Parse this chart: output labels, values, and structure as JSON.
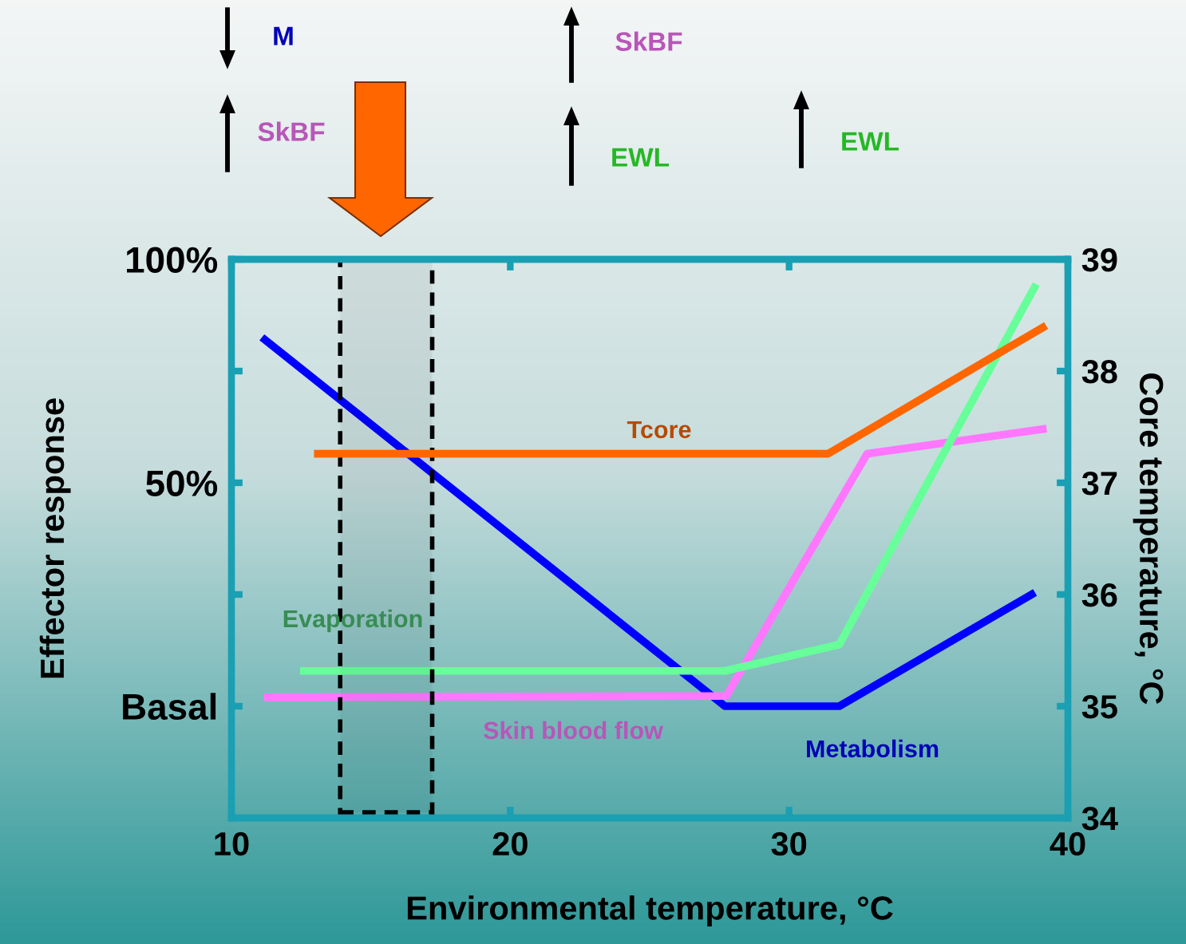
{
  "chart_data": {
    "type": "line",
    "xlabel": "Environmental temperature, °C",
    "ylabel": "Effector response",
    "y2label": "Core temperature, °C",
    "xlim": [
      10,
      40
    ],
    "xticks": [
      10,
      20,
      30,
      40
    ],
    "ylim": [
      -25,
      100
    ],
    "yticks": [
      {
        "value": 100,
        "label": "100%"
      },
      {
        "value": 75,
        "label": null
      },
      {
        "value": 50,
        "label": "50%"
      },
      {
        "value": 25,
        "label": null
      },
      {
        "value": 0,
        "label": "Basal"
      }
    ],
    "y2lim": [
      34,
      39
    ],
    "y2ticks": [
      34,
      35,
      36,
      37,
      38,
      39
    ],
    "series": [
      {
        "name": "Metabolism",
        "color": "#0000ff",
        "x": [
          11.2,
          27.7,
          31.8,
          38.7
        ],
        "values": [
          82,
          0,
          0,
          25
        ]
      },
      {
        "name": "Tcore",
        "color": "#ff6600",
        "axis": "y2",
        "x": [
          13.1,
          31.4,
          39.1
        ],
        "values": [
          37.26,
          37.26,
          38.39
        ]
      },
      {
        "name": "Skin blood flow",
        "color": "#ff77ff",
        "x": [
          11.3,
          27.75,
          32.8,
          39.1
        ],
        "values": [
          2,
          2.3,
          56.5,
          62
        ]
      },
      {
        "name": "Evaporation",
        "color": "#66ff99",
        "x": [
          12.6,
          27.7,
          31.8,
          38.8
        ],
        "values": [
          7.9,
          7.9,
          13.8,
          93.7
        ]
      }
    ],
    "bands": [
      {
        "axis": "x",
        "from": 13.9,
        "to": 17.2,
        "color": "#000000"
      }
    ],
    "annotations": [
      "M",
      "SkBF",
      "SkBF",
      "EWL",
      "EWL"
    ],
    "grid": false,
    "legend": false
  }
}
